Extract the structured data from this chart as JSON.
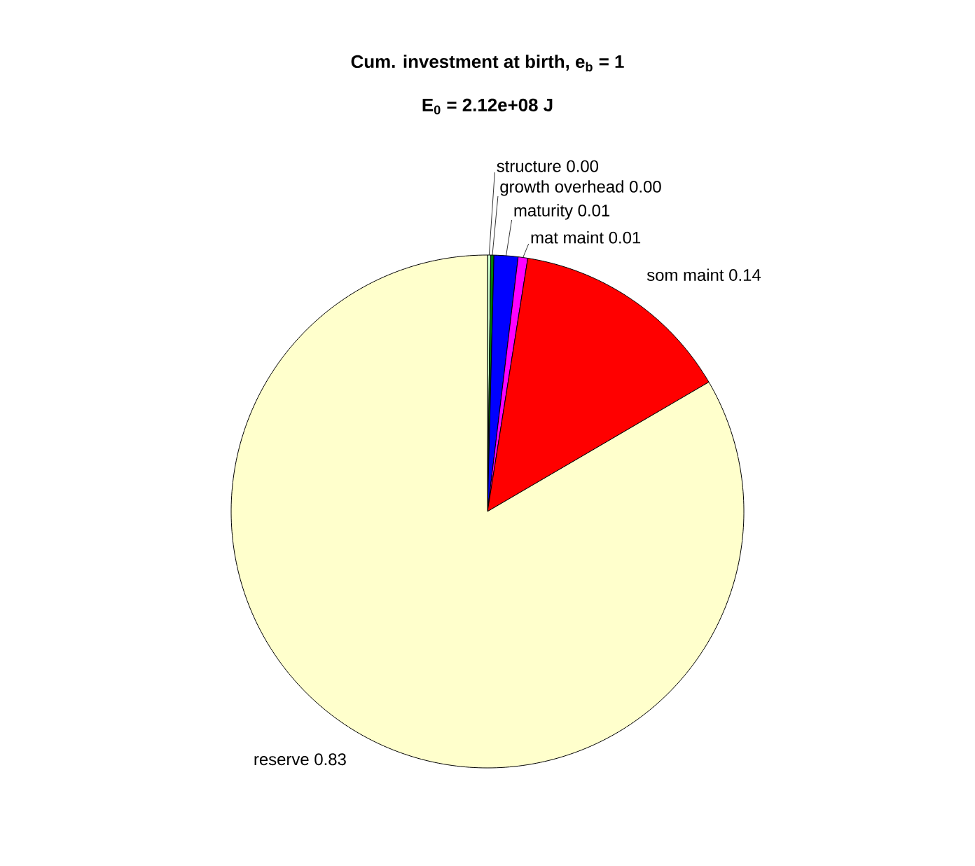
{
  "chart_data": {
    "type": "pie",
    "title": "Cum. investment at birth, e$_{b}$ = 1",
    "subtitle": "E$_{0}$ = 2.12e+08 J",
    "categories": [
      "structure",
      "growth overhead",
      "maturity",
      "mat maint",
      "som maint",
      "reserve"
    ],
    "values": [
      0.002,
      0.002,
      0.015,
      0.006,
      0.14,
      0.83
    ],
    "value_labels": [
      "0.00",
      "0.00",
      "0.01",
      "0.01",
      "0.14",
      "0.83"
    ],
    "colors": [
      "#ccffcc",
      "#008000",
      "#0000ff",
      "#ff00ff",
      "#ff0000",
      "#ffffcc"
    ]
  }
}
